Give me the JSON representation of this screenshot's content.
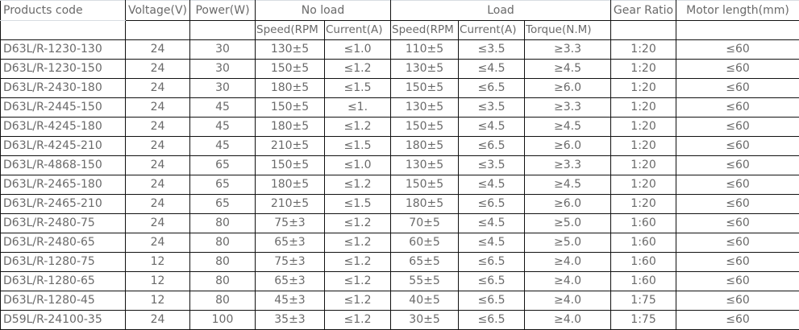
{
  "header": {
    "products_code": "Products code",
    "voltage": "Voltage(V)",
    "power": "Power(W)",
    "no_load": "No load",
    "load": "Load",
    "gear_ratio": "Gear Ratio",
    "motor_length": "Motor length(mm)",
    "nl_speed": "Speed(RPM",
    "nl_current": "Current(A)",
    "l_speed": "Speed(RPM",
    "l_current": "Current(A)",
    "l_torque": "Torque(N.M)"
  },
  "rows": [
    [
      "D63L/R-1230-130",
      "24",
      "30",
      "130±5",
      "≤1.0",
      "110±5",
      "≤3.5",
      "≥3.3",
      "1:20",
      "≤60"
    ],
    [
      "D63L/R-1230-150",
      "24",
      "30",
      "150±5",
      "≤1.2",
      "130±5",
      "≤4.5",
      "≥4.5",
      "1:20",
      "≤60"
    ],
    [
      "D63L/R-2430-180",
      "24",
      "30",
      "180±5",
      "≤1.5",
      "150±5",
      "≤6.5",
      "≥6.0",
      "1:20",
      "≤60"
    ],
    [
      "D63L/R-2445-150",
      "24",
      "45",
      "150±5",
      "≤1.",
      "130±5",
      "≤3.5",
      "≥3.3",
      "1:20",
      "≤60"
    ],
    [
      "D63L/R-4245-180",
      "24",
      "45",
      "180±5",
      "≤1.2",
      "150±5",
      "≤4.5",
      "≥4.5",
      "1:20",
      "≤60"
    ],
    [
      "D63L/R-4245-210",
      "24",
      "45",
      "210±5",
      "≤1.5",
      "180±5",
      "≤6.5",
      "≥6.0",
      "1:20",
      "≤60"
    ],
    [
      "D63L/R-4868-150",
      "24",
      "65",
      "150±5",
      "≤1.0",
      "130±5",
      "≤3.5",
      "≥3.3",
      "1:20",
      "≤60"
    ],
    [
      "D63L/R-2465-180",
      "24",
      "65",
      "180±5",
      "≤1.2",
      "150±5",
      "≤4.5",
      "≥4.5",
      "1:20",
      "≤60"
    ],
    [
      "D63L/R-2465-210",
      "24",
      "65",
      "210±5",
      "≤1.5",
      "180±5",
      "≤6.5",
      "≥6.0",
      "1:20",
      "≤60"
    ],
    [
      "D63L/R-2480-75",
      "24",
      "80",
      "75±3",
      "≤1.2",
      "70±5",
      "≤4.5",
      "≥5.0",
      "1:60",
      "≤60"
    ],
    [
      "D63L/R-2480-65",
      "24",
      "80",
      "65±3",
      "≤1.2",
      "60±5",
      "≤4.5",
      "≥5.0",
      "1:60",
      "≤60"
    ],
    [
      "D63L/R-1280-75",
      "12",
      "80",
      "75±3",
      "≤1.2",
      "65±5",
      "≤6.5",
      "≥4.0",
      "1:60",
      "≤60"
    ],
    [
      "D63L/R-1280-65",
      "12",
      "80",
      "65±3",
      "≤1.2",
      "55±5",
      "≤6.5",
      "≥4.0",
      "1:60",
      "≤60"
    ],
    [
      "D63L/R-1280-45",
      "12",
      "80",
      "45±3",
      "≤1.2",
      "40±5",
      "≤6.5",
      "≥4.0",
      "1:75",
      "≤60"
    ],
    [
      "D59L/R-24100-35",
      "24",
      "100",
      "35±3",
      "≤1.2",
      "30±5",
      "≤6.5",
      "≥4.0",
      "1:75",
      "≤60"
    ]
  ]
}
